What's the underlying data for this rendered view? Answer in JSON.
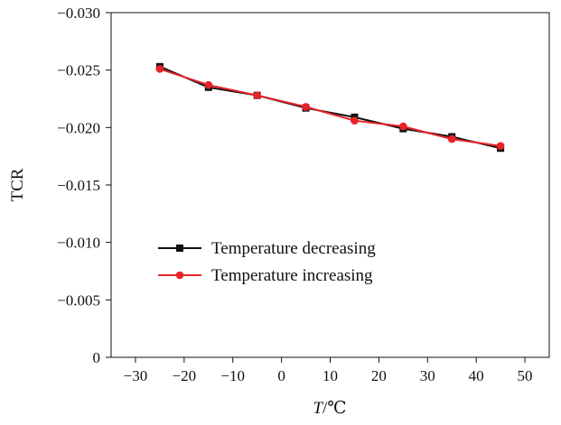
{
  "chart_data": {
    "type": "line",
    "title": "",
    "xlabel": {
      "var": "T",
      "unit": "/℃"
    },
    "ylabel": "TCR",
    "x_ticks": [
      "−30",
      "−20",
      "−10",
      "0",
      "10",
      "20",
      "30",
      "40",
      "50"
    ],
    "y_ticks": [
      "0",
      "−0.005",
      "−0.010",
      "−0.015",
      "−0.020",
      "−0.025",
      "−0.030"
    ],
    "xlim": [
      -35,
      55
    ],
    "ylim_magnitude": [
      0,
      0.03
    ],
    "y_axis_inverted": true,
    "grid": false,
    "legend_position": "lower-left inside",
    "series": [
      {
        "name": "Temperature decreasing",
        "color": "#111111",
        "marker": "square",
        "x": [
          -25,
          -15,
          -5,
          5,
          15,
          25,
          35,
          45
        ],
        "y": [
          -0.0253,
          -0.0235,
          -0.0228,
          -0.0217,
          -0.0209,
          -0.0199,
          -0.0192,
          -0.0182
        ]
      },
      {
        "name": "Temperature increasing",
        "color": "#e8222a",
        "marker": "circle",
        "x": [
          -25,
          -15,
          -5,
          5,
          15,
          25,
          35,
          45
        ],
        "y": [
          -0.0251,
          -0.0237,
          -0.0228,
          -0.0218,
          -0.0206,
          -0.0201,
          -0.019,
          -0.0184
        ]
      }
    ]
  }
}
